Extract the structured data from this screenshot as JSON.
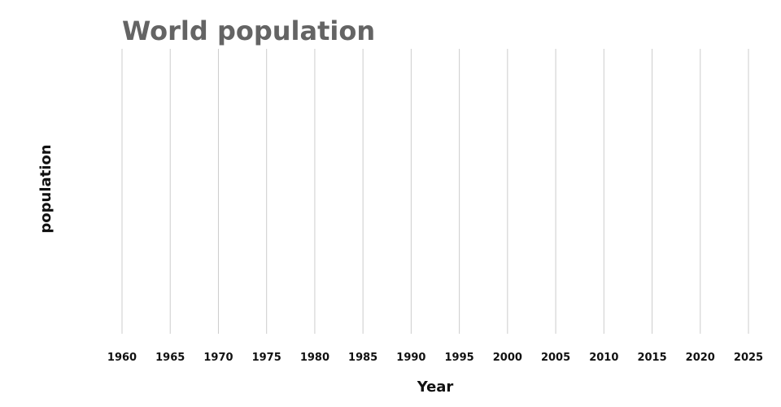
{
  "chart_data": {
    "type": "line",
    "title": "World population",
    "xlabel": "Year",
    "ylabel": "population",
    "x_ticks": [
      "1960",
      "1965",
      "1970",
      "1975",
      "1980",
      "1985",
      "1990",
      "1995",
      "2000",
      "2005",
      "2010",
      "2015",
      "2020",
      "2025"
    ],
    "xlim": [
      1960,
      2025
    ],
    "grid": "vertical",
    "grid_color": "#cccccc",
    "title_color": "#646464",
    "series": []
  }
}
